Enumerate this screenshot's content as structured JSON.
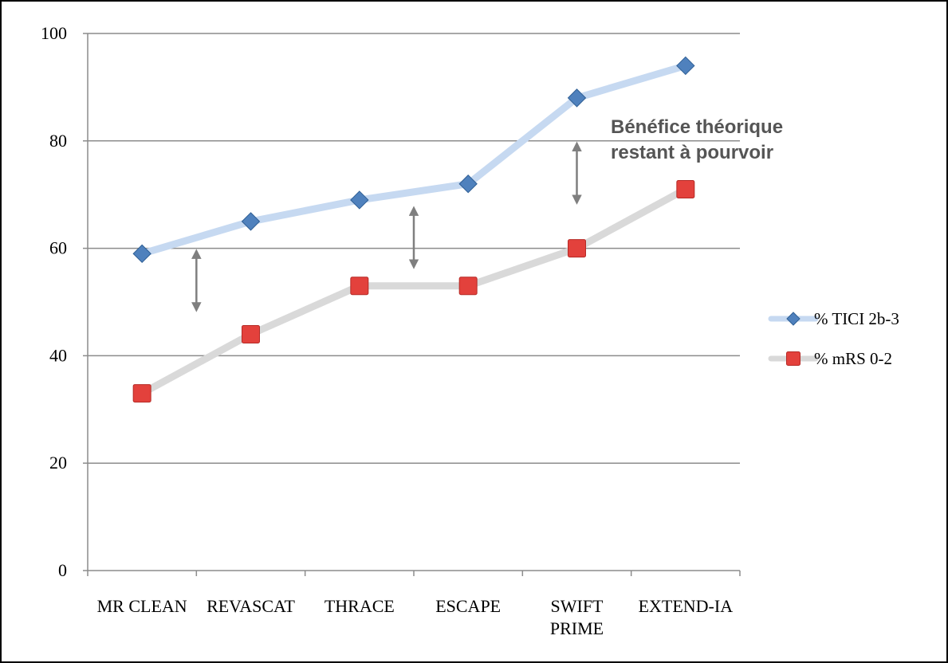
{
  "chart_data": {
    "type": "line",
    "categories": [
      [
        "MR CLEAN"
      ],
      [
        "REVASCAT"
      ],
      [
        "THRACE"
      ],
      [
        "ESCAPE"
      ],
      [
        "SWIFT",
        "PRIME"
      ],
      [
        "EXTEND-IA"
      ]
    ],
    "series": [
      {
        "name": "% TICI 2b-3",
        "values": [
          59,
          65,
          69,
          72,
          88,
          94
        ],
        "line_color": "#c6d9f1",
        "marker": "diamond",
        "marker_color": "#4f81bd"
      },
      {
        "name": "% mRS 0-2",
        "values": [
          33,
          44,
          53,
          53,
          60,
          71
        ],
        "line_color": "#d9d9d9",
        "marker": "square",
        "marker_color": "#e3413c"
      }
    ],
    "yticks": [
      0,
      20,
      40,
      60,
      80,
      100
    ],
    "ylim": [
      0,
      100
    ],
    "grid": true,
    "legend_position": "right",
    "annotation": {
      "lines": [
        "Bénéfice théorique",
        "restant à pourvoir"
      ]
    },
    "gap_arrows": [
      {
        "category_index": 0.5,
        "from": 48,
        "to": 60
      },
      {
        "category_index": 2.5,
        "from": 56,
        "to": 68
      },
      {
        "category_index": 4.0,
        "from": 68,
        "to": 80
      }
    ]
  }
}
